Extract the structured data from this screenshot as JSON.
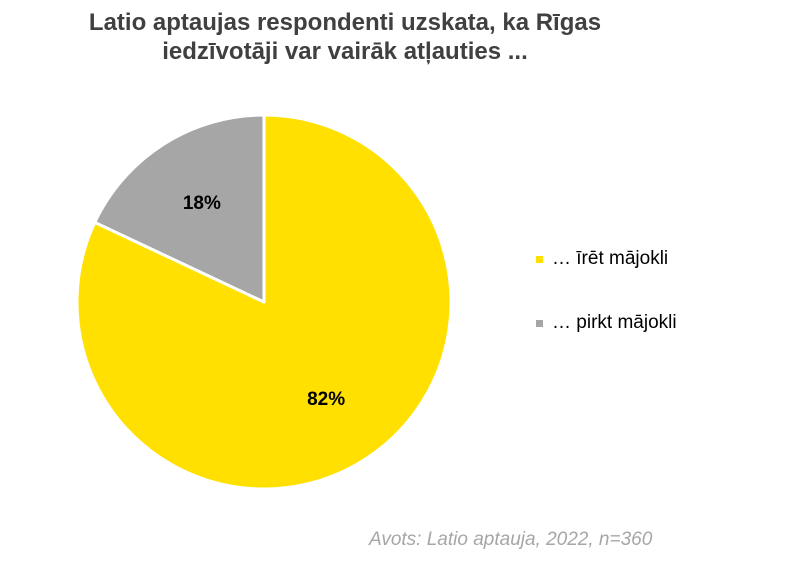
{
  "chart_data": {
    "type": "pie",
    "title": [
      "Latio aptaujas respondenti uzskata, ka Rīgas",
      "iedzīvotāji var vairāk atļauties ..."
    ],
    "slices": [
      {
        "label": "… īrēt mājokli",
        "value": 82,
        "value_label": "82%",
        "color": "#FFE000"
      },
      {
        "label": "… pirkt mājokli",
        "value": 18,
        "value_label": "18%",
        "color": "#A6A6A6"
      }
    ],
    "legend_position": "right"
  },
  "source": "Avots: Latio aptauja, 2022, n=360"
}
